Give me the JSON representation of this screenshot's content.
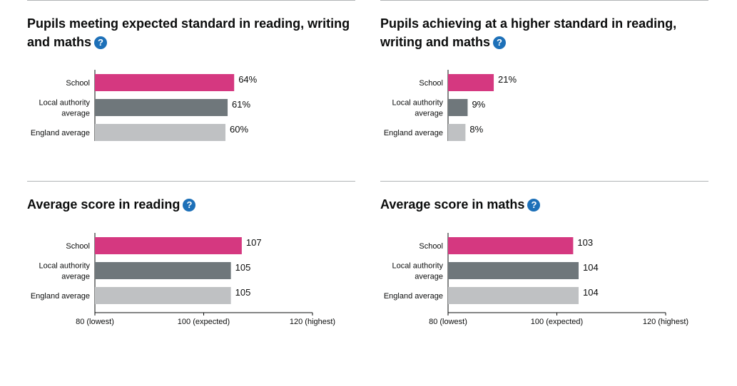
{
  "colors": {
    "school": "#d53880",
    "local_authority": "#6f777b",
    "england": "#bfc1c3",
    "help_icon": "#1d70b8",
    "divider": "#b1b4b6"
  },
  "help_glyph": "?",
  "panels": [
    {
      "title": "Pupils meeting expected standard in reading, writing and maths",
      "help_icon": "question-circle-icon",
      "chart_data": {
        "type": "bar",
        "orientation": "horizontal",
        "categories": [
          "School",
          "Local authority average",
          "England average"
        ],
        "category_lines": [
          [
            "School"
          ],
          [
            "Local authority",
            "average"
          ],
          [
            "England average"
          ]
        ],
        "values": [
          64,
          61,
          60
        ],
        "value_labels": [
          "64%",
          "61%",
          "60%"
        ],
        "xlim": [
          0,
          100
        ],
        "ticks": []
      }
    },
    {
      "title": "Pupils achieving at a higher standard in reading, writing and maths",
      "help_icon": "question-circle-icon",
      "chart_data": {
        "type": "bar",
        "orientation": "horizontal",
        "categories": [
          "School",
          "Local authority average",
          "England average"
        ],
        "category_lines": [
          [
            "School"
          ],
          [
            "Local authority",
            "average"
          ],
          [
            "England average"
          ]
        ],
        "values": [
          21,
          9,
          8
        ],
        "value_labels": [
          "21%",
          "9%",
          "8%"
        ],
        "xlim": [
          0,
          100
        ],
        "ticks": []
      }
    },
    {
      "title": "Average score in reading",
      "help_icon": "question-circle-icon",
      "chart_data": {
        "type": "bar",
        "orientation": "horizontal",
        "categories": [
          "School",
          "Local authority average",
          "England average"
        ],
        "category_lines": [
          [
            "School"
          ],
          [
            "Local authority",
            "average"
          ],
          [
            "England average"
          ]
        ],
        "values": [
          107,
          105,
          105
        ],
        "value_labels": [
          "107",
          "105",
          "105"
        ],
        "xlim": [
          80,
          120
        ],
        "ticks": [
          {
            "value": 80,
            "label": "80 (lowest)"
          },
          {
            "value": 100,
            "label": "100 (expected)"
          },
          {
            "value": 120,
            "label": "120 (highest)"
          }
        ]
      }
    },
    {
      "title": "Average score in maths",
      "help_icon": "question-circle-icon",
      "chart_data": {
        "type": "bar",
        "orientation": "horizontal",
        "categories": [
          "School",
          "Local authority average",
          "England average"
        ],
        "category_lines": [
          [
            "School"
          ],
          [
            "Local authority",
            "average"
          ],
          [
            "England average"
          ]
        ],
        "values": [
          103,
          104,
          104
        ],
        "value_labels": [
          "103",
          "104",
          "104"
        ],
        "xlim": [
          80,
          120
        ],
        "ticks": [
          {
            "value": 80,
            "label": "80 (lowest)"
          },
          {
            "value": 100,
            "label": "100 (expected)"
          },
          {
            "value": 120,
            "label": "120 (highest)"
          }
        ]
      }
    }
  ]
}
